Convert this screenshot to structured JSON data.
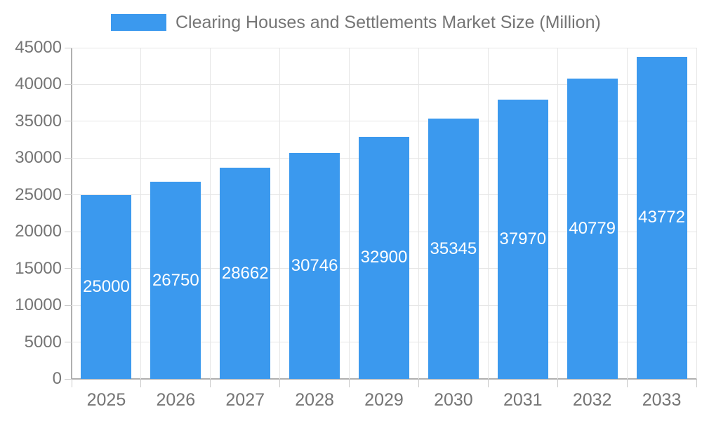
{
  "chart_data": {
    "type": "bar",
    "title": "Clearing Houses and Settlements Market Size (Million)",
    "categories": [
      "2025",
      "2026",
      "2027",
      "2028",
      "2029",
      "2030",
      "2031",
      "2032",
      "2033"
    ],
    "values": [
      25000,
      26750,
      28662,
      30746,
      32900,
      35345,
      37970,
      40779,
      43772
    ],
    "xlabel": "",
    "ylabel": "",
    "ylim": [
      0,
      45000
    ],
    "ytick_step": 5000,
    "yticks": [
      0,
      5000,
      10000,
      15000,
      20000,
      25000,
      30000,
      35000,
      40000,
      45000
    ],
    "grid": true,
    "legend_position": "top",
    "bar_color": "#3b99ee",
    "bar_value_label_color": "#ffffff",
    "axis_text_color": "#757575",
    "gridline_color": "#e6e6e6",
    "axis_line_color": "#b0b0b0"
  }
}
